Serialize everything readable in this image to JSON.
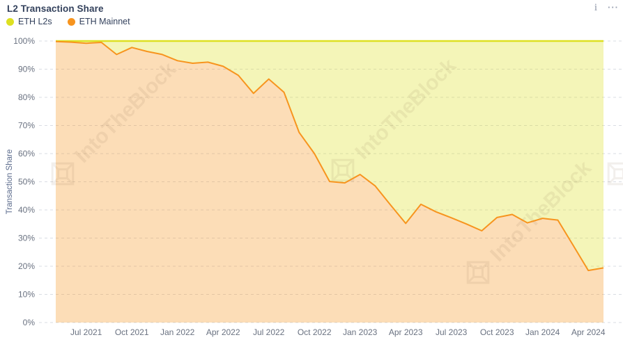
{
  "header": {
    "title": "L2 Transaction Share",
    "icons": {
      "info": "i",
      "menu": "···"
    }
  },
  "legend": [
    {
      "label": "ETH L2s",
      "color": "#dde021"
    },
    {
      "label": "ETH Mainnet",
      "color": "#f7941e"
    }
  ],
  "watermark": {
    "text": "IntoTheBlock"
  },
  "colors": {
    "l2s_yellow": "#dde021",
    "mainnet_orange": "#f7941e",
    "title_text": "#33415c",
    "axis_text": "#697180",
    "grid": "#d9dce3",
    "watermark": "#7a5c3a",
    "background": "#ffffff"
  },
  "chart_data": {
    "type": "area",
    "stacked": true,
    "title": "L2 Transaction Share",
    "ylabel": "Transaction Share",
    "xlabel": "",
    "unit": "%",
    "ylim": [
      0,
      100
    ],
    "grid": "horizontal-dashed",
    "legend_position": "top-left",
    "x": [
      "May 2021",
      "Jun 2021",
      "Jul 2021",
      "Aug 2021",
      "Sep 2021",
      "Oct 2021",
      "Nov 2021",
      "Dec 2021",
      "Jan 2022",
      "Feb 2022",
      "Mar 2022",
      "Apr 2022",
      "May 2022",
      "Jun 2022",
      "Jul 2022",
      "Aug 2022",
      "Sep 2022",
      "Oct 2022",
      "Nov 2022",
      "Dec 2022",
      "Jan 2023",
      "Feb 2023",
      "Mar 2023",
      "Apr 2023",
      "May 2023",
      "Jun 2023",
      "Jul 2023",
      "Aug 2023",
      "Sep 2023",
      "Oct 2023",
      "Nov 2023",
      "Dec 2023",
      "Jan 2024",
      "Feb 2024",
      "Mar 2024",
      "Apr 2024",
      "May 2024"
    ],
    "series": [
      {
        "name": "ETH L2s",
        "color": "#dde021",
        "values": [
          0.2,
          0.4,
          0.8,
          0.5,
          4.8,
          2.3,
          3.7,
          4.8,
          7.0,
          7.9,
          7.5,
          9.0,
          12.2,
          18.6,
          13.5,
          18.2,
          32.5,
          40.0,
          49.9,
          50.4,
          47.4,
          51.5,
          58.2,
          64.8,
          58.0,
          60.7,
          62.8,
          65.0,
          67.4,
          62.7,
          61.6,
          64.6,
          63.0,
          63.6,
          72.5,
          81.5,
          80.6
        ]
      },
      {
        "name": "ETH Mainnet",
        "color": "#f7941e",
        "values": [
          99.8,
          99.6,
          99.2,
          99.5,
          95.2,
          97.7,
          96.3,
          95.2,
          93.0,
          92.1,
          92.5,
          91.0,
          87.8,
          81.4,
          86.5,
          81.8,
          67.5,
          60.0,
          50.1,
          49.6,
          52.6,
          48.5,
          41.8,
          35.2,
          42.0,
          39.3,
          37.2,
          35.0,
          32.6,
          37.3,
          38.4,
          35.4,
          37.0,
          36.4,
          27.5,
          18.5,
          19.4
        ]
      }
    ],
    "yticks": [
      "0%",
      "10%",
      "20%",
      "30%",
      "40%",
      "50%",
      "60%",
      "70%",
      "80%",
      "90%",
      "100%"
    ],
    "xticks": [
      "Jul 2021",
      "Oct 2021",
      "Jan 2022",
      "Apr 2022",
      "Jul 2022",
      "Oct 2022",
      "Jan 2023",
      "Apr 2023",
      "Jul 2023",
      "Oct 2023",
      "Jan 2024",
      "Apr 2024"
    ]
  }
}
